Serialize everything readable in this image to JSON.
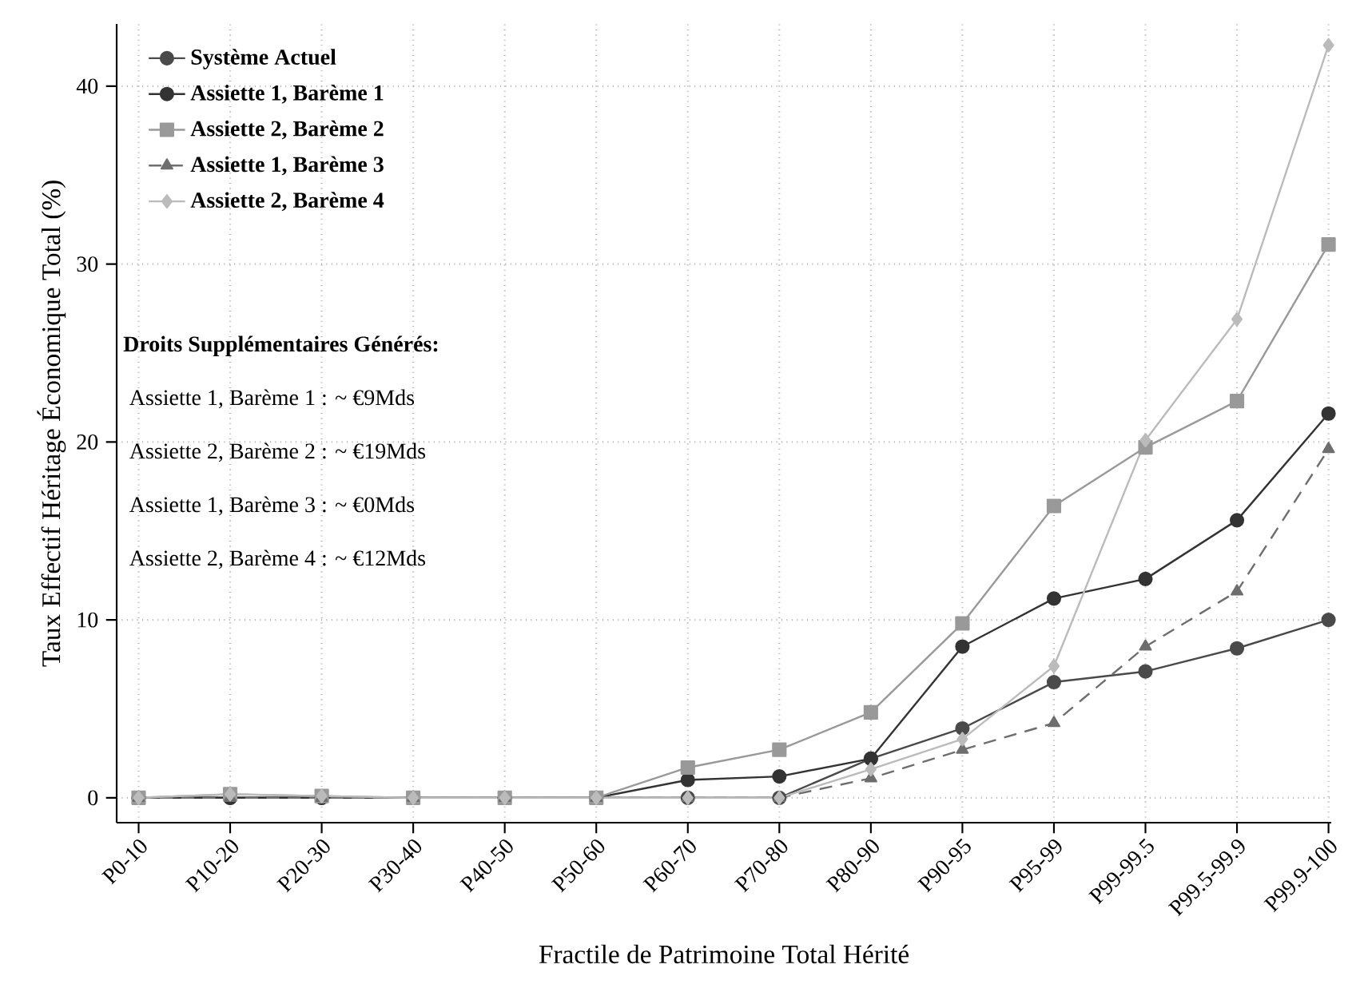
{
  "chart_data": {
    "type": "line",
    "xlabel": "Fractile de Patrimoine Total Hérité",
    "ylabel": "Taux Effectif Héritage Économique Total (%)",
    "categories": [
      "P0-10",
      "P10-20",
      "P20-30",
      "P30-40",
      "P40-50",
      "P50-60",
      "P60-70",
      "P70-80",
      "P80-90",
      "P90-95",
      "P95-99",
      "P99-99.5",
      "P99.5-99.9",
      "P99.9-100"
    ],
    "ylim": [
      -1.4,
      43.5
    ],
    "yticks": [
      0,
      10,
      20,
      30,
      40
    ],
    "grid": true,
    "legend": "top left",
    "series": [
      {
        "name": "Système Actuel",
        "color": "#4a4a4a",
        "marker": "circle",
        "line_style": "solid",
        "values": [
          0,
          0,
          0,
          0,
          0,
          0,
          0,
          0,
          2.2,
          3.9,
          6.5,
          7.1,
          8.4,
          10.0
        ]
      },
      {
        "name": "Assiette 1, Barème 1",
        "color": "#333333",
        "marker": "circle",
        "line_style": "solid",
        "values": [
          0,
          0,
          0,
          0,
          0,
          0,
          1.0,
          1.2,
          2.2,
          8.5,
          11.2,
          12.3,
          15.6,
          21.6
        ]
      },
      {
        "name": "Assiette 2, Barème 2",
        "color": "#999999",
        "marker": "square",
        "line_style": "solid",
        "values": [
          0,
          0.2,
          0.1,
          0,
          0,
          0,
          1.7,
          2.7,
          4.8,
          9.8,
          16.4,
          19.7,
          22.3,
          31.1
        ]
      },
      {
        "name": "Assiette 1, Barème 3",
        "color": "#6e6e6e",
        "marker": "triangle",
        "line_style": "dashed",
        "values": [
          0,
          0,
          0,
          0,
          0,
          0,
          0,
          0,
          1.1,
          2.7,
          4.2,
          8.5,
          11.6,
          19.6
        ]
      },
      {
        "name": "Assiette 2, Barème 4",
        "color": "#bbbbbb",
        "marker": "diamond",
        "line_style": "solid",
        "values": [
          0,
          0.2,
          0.1,
          0,
          0,
          0,
          0,
          0,
          1.6,
          3.3,
          7.4,
          20.1,
          26.9,
          42.3
        ]
      }
    ],
    "annotations": [
      "Droits Supplémentaires Générés:",
      "Assiette 1, Barème 1 : ~ €9Mds",
      "Assiette 2, Barème 2 : ~ €19Mds",
      "Assiette 1, Barème 3 : ~ €0Mds",
      "Assiette 2, Barème 4 : ~ €12Mds"
    ]
  }
}
